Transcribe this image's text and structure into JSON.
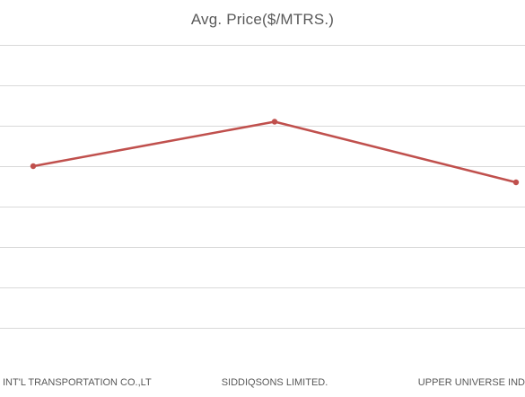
{
  "chart_data": {
    "type": "line",
    "title": "Avg. Price($/MTRS.)",
    "categories": [
      "INT'L TRANSPORTATION CO.,LT",
      "SIDDIQSONS LIMITED.",
      "UPPER UNIVERSE IND"
    ],
    "series": [
      {
        "values": [
          5.0,
          6.1,
          4.6
        ]
      }
    ],
    "ylim": [
      0,
      8
    ],
    "grid": true,
    "legend": "none",
    "colors": {
      "line": "#c0504d",
      "grid": "#d9d9d9",
      "text": "#595959"
    }
  }
}
